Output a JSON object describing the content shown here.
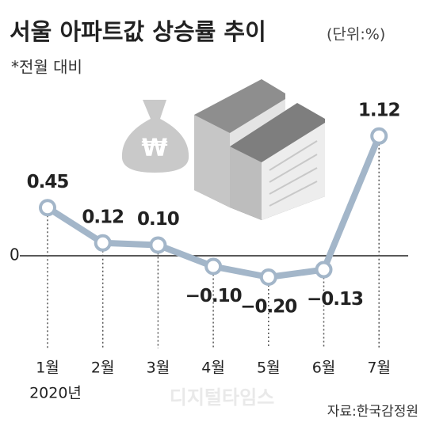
{
  "chart_data": {
    "type": "line",
    "title": "서울 아파트값 상승률 추이",
    "unit": "(단위:%)",
    "subtitle": "*전월 대비",
    "categories": [
      "1월",
      "2월",
      "3월",
      "4월",
      "5월",
      "6월",
      "7월"
    ],
    "year_label": "2020년",
    "values": [
      0.45,
      0.12,
      0.1,
      -0.1,
      -0.2,
      -0.13,
      1.12
    ],
    "value_labels": [
      "0.45",
      "0.12",
      "0.10",
      "−0.10",
      "−0.20",
      "−0.13",
      "1.12"
    ],
    "color": "#a3b6c9",
    "ylim": [
      -0.5,
      1.5
    ],
    "yticks": [
      0
    ],
    "source": "자료:한국감정원",
    "watermark": "디지털타임스"
  }
}
